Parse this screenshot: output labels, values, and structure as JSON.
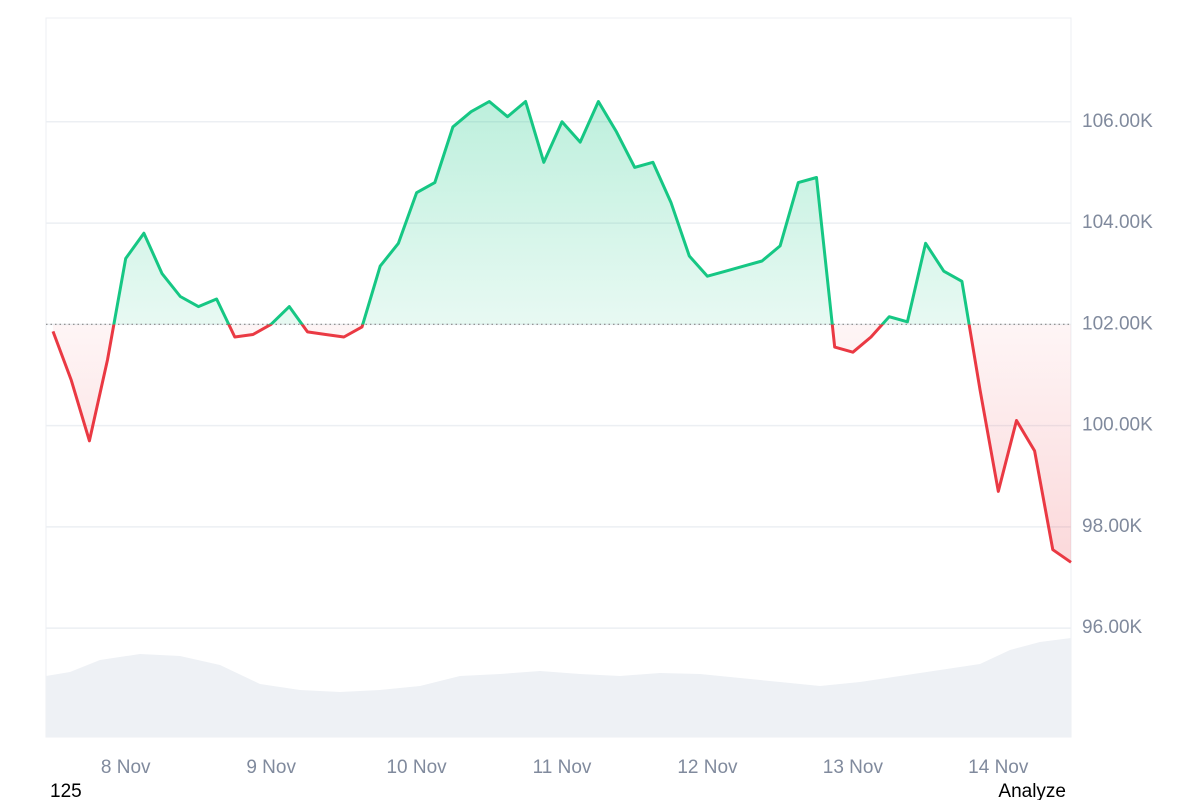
{
  "chart_data": {
    "type": "line",
    "x": [
      null,
      null,
      null,
      null,
      "8 Nov",
      null,
      null,
      null,
      null,
      null,
      null,
      null,
      "9 Nov",
      null,
      null,
      null,
      null,
      null,
      null,
      null,
      "10 Nov",
      null,
      null,
      null,
      null,
      null,
      null,
      null,
      "11 Nov",
      null,
      null,
      null,
      null,
      null,
      null,
      null,
      "12 Nov",
      null,
      null,
      null,
      null,
      null,
      null,
      null,
      "13 Nov",
      null,
      null,
      null,
      null,
      null,
      null,
      null,
      "14 Nov",
      null,
      null,
      null,
      null
    ],
    "values": [
      101860,
      100900,
      99700,
      101300,
      103300,
      103800,
      103000,
      102550,
      102350,
      102500,
      101750,
      101800,
      102000,
      102350,
      101850,
      101800,
      101750,
      101950,
      103150,
      103600,
      104600,
      104800,
      105900,
      106200,
      106400,
      106100,
      106400,
      105200,
      106000,
      105600,
      106400,
      105800,
      105100,
      105200,
      104400,
      103350,
      102950,
      103050,
      103150,
      103250,
      103550,
      104800,
      104900,
      101550,
      101450,
      101750,
      102150,
      102050,
      103600,
      103050,
      102850,
      100700,
      98700,
      100100,
      99500,
      97550,
      97300
    ],
    "baseline": 102000,
    "colors": {
      "up": "#16c784",
      "down": "#ea3943"
    },
    "ylim": [
      93850,
      108050
    ],
    "yticks": [
      {
        "value": 96000,
        "label": "96.00K"
      },
      {
        "value": 98000,
        "label": "98.00K"
      },
      {
        "value": 100000,
        "label": "100.00K"
      },
      {
        "value": 102000,
        "label": "102.00K"
      },
      {
        "value": 104000,
        "label": "104.00K"
      },
      {
        "value": 106000,
        "label": "106.00K"
      }
    ],
    "grid": true,
    "footer_left": "125",
    "footer_right": "Analyze"
  }
}
